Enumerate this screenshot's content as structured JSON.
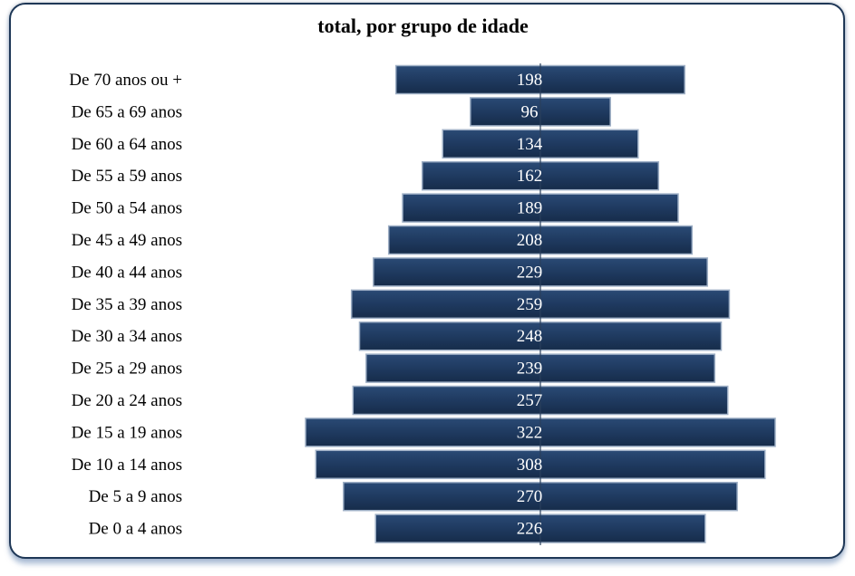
{
  "chart_data": {
    "type": "bar",
    "orientation": "horizontal-pyramid",
    "title": "total, por grupo de idade",
    "categories": [
      "De 70 anos ou +",
      "De 65 a 69 anos",
      "De 60 a 64 anos",
      "De 55 a 59 anos",
      "De 50 a 54 anos",
      "De 45 a 49 anos",
      "De 40 a 44 anos",
      "De 35 a 39 anos",
      "De 30 a 34 anos",
      "De 25 a 29 anos",
      "De 20 a 24 anos",
      "De 15 a 19 anos",
      "De 10 a 14 anos",
      "De 5 a 9 anos",
      "De 0 a 4 anos"
    ],
    "values": [
      198,
      96,
      134,
      162,
      189,
      208,
      229,
      259,
      248,
      239,
      257,
      322,
      308,
      270,
      226
    ],
    "xlim": [
      -330,
      330
    ],
    "grid": false,
    "legend": "none",
    "colors": {
      "bar": "#1f3a60",
      "bar_edge": "#9fb0c6",
      "axis": "#2a3f5c",
      "frame": "#1e3756"
    }
  }
}
